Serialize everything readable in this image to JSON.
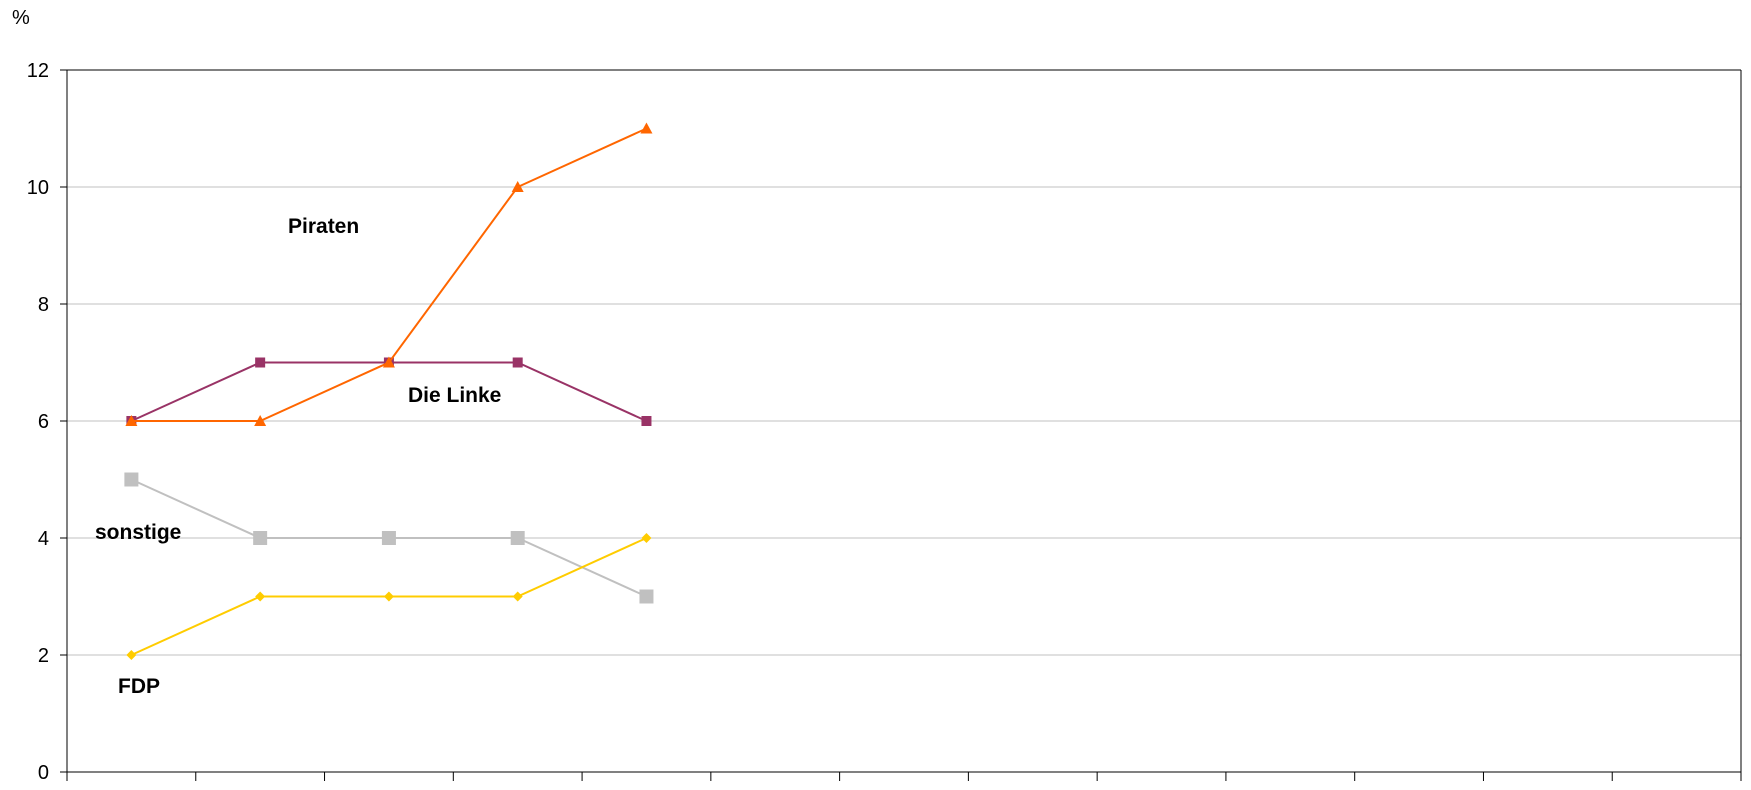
{
  "chart_data": {
    "type": "line",
    "title": "",
    "xlabel": "",
    "ylabel": "%",
    "ylim": [
      0,
      12
    ],
    "y_ticks": [
      "0",
      "2",
      "4",
      "6",
      "8",
      "10",
      "12"
    ],
    "x_slots": 13,
    "grid": "horizontal",
    "legend": "labels-inline",
    "x": [
      1,
      2,
      3,
      4,
      5
    ],
    "series": [
      {
        "name": "Piraten",
        "color": "#ff6600",
        "marker": "triangle",
        "values": [
          6,
          6,
          7,
          10,
          11
        ]
      },
      {
        "name": "Die Linke",
        "color": "#993366",
        "marker": "square",
        "values": [
          6,
          7,
          7,
          7,
          6
        ]
      },
      {
        "name": "sonstige",
        "color": "#c0c0c0",
        "marker": "square-large",
        "values": [
          5,
          4,
          4,
          4,
          3
        ]
      },
      {
        "name": "FDP",
        "color": "#ffcc00",
        "marker": "diamond",
        "values": [
          2,
          3,
          3,
          3,
          4
        ]
      }
    ]
  }
}
